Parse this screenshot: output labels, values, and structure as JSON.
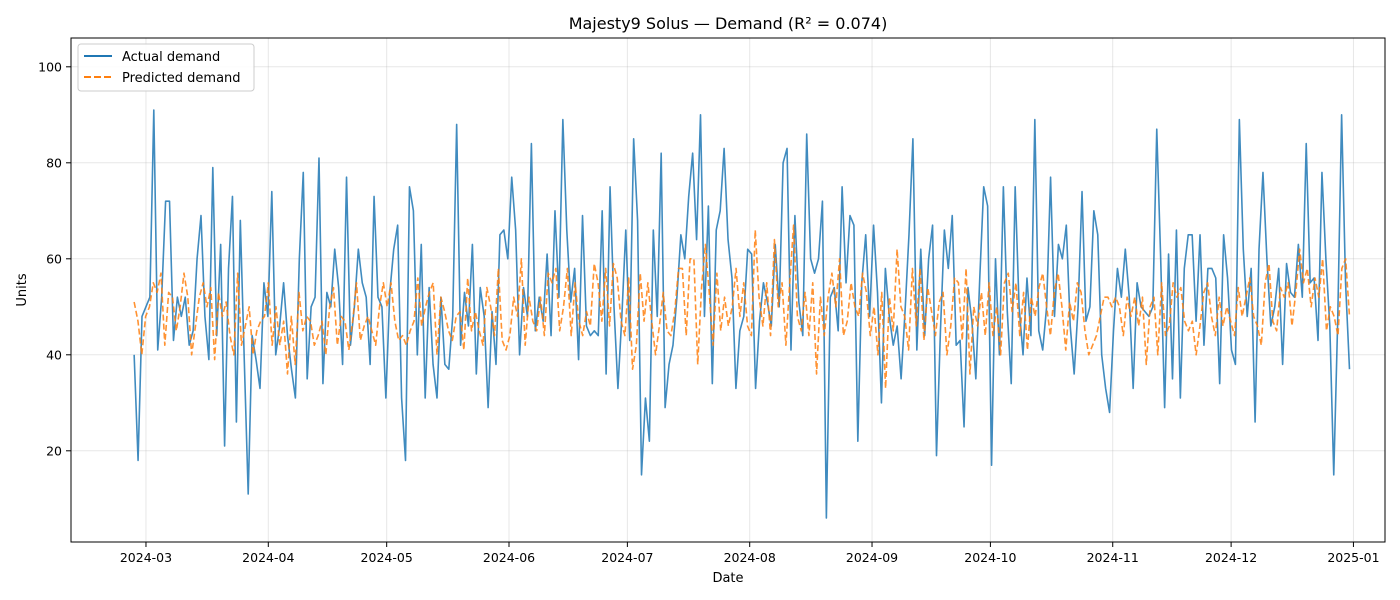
{
  "chart_data": {
    "type": "line",
    "title": "Majesty9 Solus — Demand (R² = 0.074)",
    "xlabel": "Date",
    "ylabel": "Units",
    "x_tick_labels": [
      "2024-03",
      "2024-04",
      "2024-05",
      "2024-06",
      "2024-07",
      "2024-08",
      "2024-09",
      "2024-10",
      "2024-11",
      "2024-12",
      "2025-01"
    ],
    "x_tick_dates": [
      "2024-03-01",
      "2024-04-01",
      "2024-05-01",
      "2024-06-01",
      "2024-07-01",
      "2024-08-01",
      "2024-09-01",
      "2024-10-01",
      "2024-11-01",
      "2024-12-01",
      "2025-01-01"
    ],
    "y_ticks": [
      20,
      40,
      60,
      80,
      100
    ],
    "xlim": [
      "2024-02-11",
      "2025-01-09"
    ],
    "ylim": [
      1,
      106
    ],
    "grid": true,
    "legend_position": "top-left",
    "x_start": "2024-02-27",
    "x_end": "2024-12-31",
    "series": [
      {
        "name": "Actual demand",
        "color": "#1f77b4",
        "style": "solid",
        "values": [
          40,
          18,
          48,
          50,
          52,
          91,
          41,
          52,
          72,
          72,
          43,
          52,
          48,
          52,
          42,
          45,
          60,
          69,
          48,
          39,
          79,
          44,
          63,
          21,
          58,
          73,
          26,
          68,
          39,
          11,
          44,
          39,
          33,
          55,
          48,
          74,
          40,
          46,
          55,
          44,
          37,
          31,
          60,
          78,
          35,
          50,
          52,
          81,
          34,
          53,
          50,
          62,
          54,
          38,
          77,
          42,
          50,
          62,
          55,
          52,
          38,
          73,
          52,
          50,
          31,
          53,
          62,
          67,
          31,
          18,
          75,
          70,
          40,
          63,
          31,
          54,
          38,
          31,
          52,
          38,
          37,
          48,
          88,
          42,
          53,
          46,
          63,
          36,
          54,
          48,
          29,
          49,
          38,
          65,
          66,
          60,
          77,
          66,
          40,
          54,
          48,
          84,
          45,
          52,
          47,
          61,
          44,
          70,
          52,
          89,
          66,
          51,
          58,
          39,
          69,
          46,
          44,
          45,
          44,
          70,
          36,
          75,
          50,
          33,
          48,
          66,
          43,
          85,
          68,
          15,
          31,
          22,
          66,
          48,
          82,
          29,
          38,
          42,
          52,
          65,
          60,
          73,
          82,
          64,
          90,
          48,
          71,
          34,
          66,
          70,
          83,
          64,
          56,
          33,
          45,
          48,
          62,
          61,
          33,
          47,
          55,
          51,
          46,
          63,
          50,
          80,
          83,
          41,
          69,
          51,
          44,
          86,
          60,
          57,
          60,
          72,
          6,
          52,
          54,
          45,
          75,
          55,
          69,
          67,
          22,
          55,
          65,
          48,
          67,
          53,
          30,
          58,
          48,
          42,
          46,
          35,
          49,
          65,
          85,
          41,
          62,
          44,
          60,
          67,
          19,
          45,
          66,
          58,
          69,
          42,
          43,
          25,
          54,
          47,
          35,
          56,
          75,
          71,
          17,
          60,
          40,
          75,
          49,
          34,
          75,
          50,
          40,
          56,
          44,
          89,
          45,
          41,
          50,
          77,
          48,
          63,
          60,
          67,
          46,
          36,
          50,
          74,
          47,
          50,
          70,
          65,
          40,
          33,
          28,
          45,
          58,
          52,
          62,
          52,
          33,
          55,
          50,
          49,
          48,
          50,
          87,
          60,
          29,
          61,
          35,
          66,
          31,
          58,
          65,
          65,
          47,
          65,
          42,
          58,
          58,
          56,
          34,
          65,
          56,
          41,
          38,
          89,
          62,
          48,
          58,
          26,
          62,
          78,
          60,
          46,
          50,
          58,
          38,
          59,
          53,
          52,
          63,
          52,
          84,
          55,
          56,
          43,
          78,
          60,
          46,
          15,
          47,
          90,
          55,
          37
        ]
      },
      {
        "name": "Predicted demand",
        "color": "#ff7f0e",
        "style": "dashed",
        "values": [
          51,
          47,
          40,
          48,
          50,
          55,
          53,
          57,
          42,
          53,
          52,
          45,
          50,
          57,
          52,
          40,
          46,
          52,
          55,
          50,
          54,
          39,
          53,
          48,
          51,
          44,
          40,
          57,
          42,
          46,
          50,
          40,
          45,
          47,
          48,
          55,
          42,
          50,
          42,
          47,
          36,
          48,
          38,
          53,
          45,
          48,
          47,
          42,
          44,
          47,
          40,
          50,
          54,
          42,
          48,
          47,
          41,
          47,
          55,
          43,
          46,
          48,
          45,
          42,
          50,
          55,
          50,
          55,
          47,
          43,
          44,
          42,
          45,
          47,
          56,
          46,
          50,
          53,
          55,
          40,
          52,
          49,
          45,
          43,
          48,
          49,
          41,
          56,
          45,
          49,
          45,
          42,
          54,
          50,
          44,
          58,
          43,
          41,
          44,
          52,
          48,
          60,
          42,
          52,
          47,
          45,
          52,
          44,
          57,
          55,
          58,
          45,
          50,
          58,
          44,
          55,
          47,
          44,
          49,
          46,
          59,
          55,
          47,
          58,
          46,
          59,
          56,
          47,
          44,
          56,
          37,
          42,
          57,
          47,
          55,
          47,
          40,
          46,
          53,
          45,
          44,
          49,
          58,
          58,
          44,
          60,
          60,
          38,
          54,
          63,
          53,
          42,
          57,
          45,
          52,
          46,
          50,
          58,
          48,
          55,
          46,
          44,
          66,
          52,
          46,
          55,
          44,
          64,
          50,
          55,
          42,
          55,
          67,
          48,
          45,
          53,
          44,
          55,
          36,
          52,
          44,
          52,
          57,
          50,
          60,
          44,
          47,
          55,
          50,
          48,
          57,
          53,
          44,
          50,
          40,
          53,
          33,
          52,
          45,
          62,
          50,
          48,
          41,
          58,
          46,
          58,
          43,
          54,
          49,
          44,
          51,
          53,
          40,
          46,
          56,
          55,
          43,
          58,
          36,
          50,
          46,
          53,
          44,
          55,
          44,
          50,
          40,
          55,
          57,
          49,
          55,
          44,
          53,
          41,
          52,
          48,
          54,
          57,
          50,
          44,
          53,
          57,
          50,
          41,
          51,
          47,
          55,
          53,
          45,
          40,
          42,
          44,
          48,
          52,
          52,
          50,
          52,
          50,
          44,
          52,
          48,
          52,
          46,
          52,
          38,
          50,
          52,
          40,
          55,
          44,
          46,
          55,
          52,
          54,
          47,
          45,
          47,
          40,
          46,
          53,
          55,
          48,
          44,
          52,
          46,
          50,
          47,
          44,
          54,
          48,
          52,
          56,
          48,
          46,
          42,
          55,
          59,
          47,
          45,
          54,
          52,
          55,
          46,
          53,
          62,
          55,
          58,
          50,
          56,
          52,
          60,
          45,
          50,
          48,
          44,
          58,
          60,
          48
        ]
      }
    ]
  }
}
